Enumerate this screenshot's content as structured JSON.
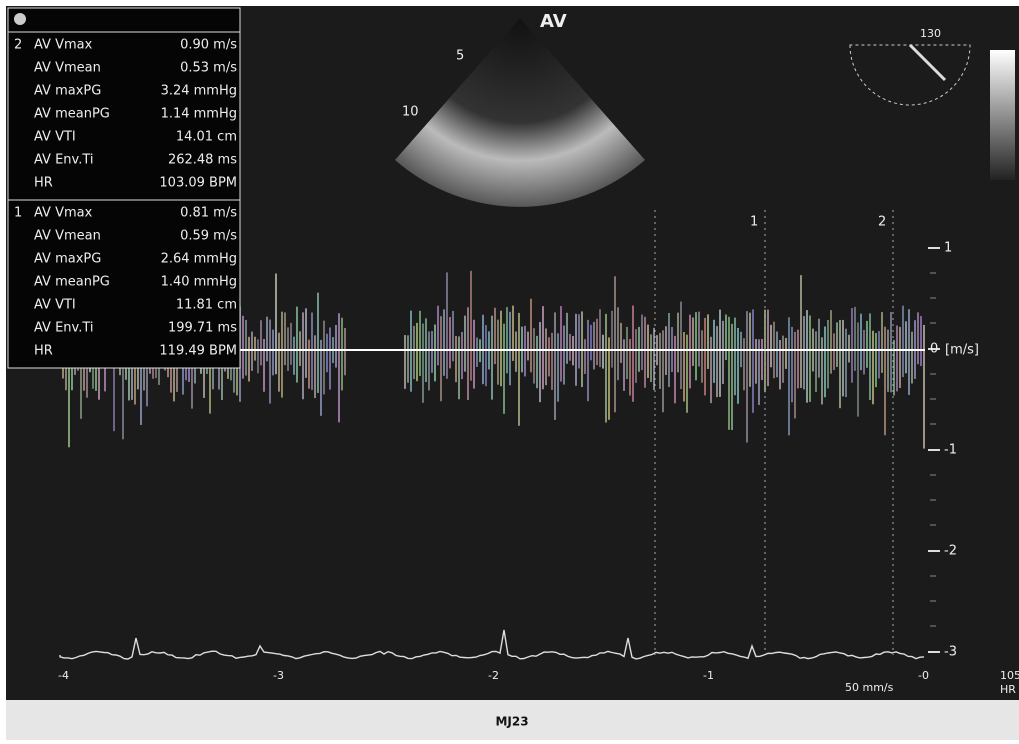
{
  "header": {
    "view_label": "AV",
    "probe_angle": "130"
  },
  "depth_marks": [
    "5",
    "10"
  ],
  "measurements": [
    {
      "marker": "2",
      "rows": [
        {
          "label": "AV Vmax",
          "value": "0.90 m/s"
        },
        {
          "label": "AV Vmean",
          "value": "0.53 m/s"
        },
        {
          "label": "AV maxPG",
          "value": "3.24 mmHg"
        },
        {
          "label": "AV meanPG",
          "value": "1.14 mmHg"
        },
        {
          "label": "AV VTI",
          "value": "14.01 cm"
        },
        {
          "label": "AV Env.Ti",
          "value": "262.48 ms"
        },
        {
          "label": "HR",
          "value": "103.09 BPM"
        }
      ]
    },
    {
      "marker": "1",
      "rows": [
        {
          "label": "AV Vmax",
          "value": "0.81 m/s"
        },
        {
          "label": "AV Vmean",
          "value": "0.59 m/s"
        },
        {
          "label": "AV maxPG",
          "value": "2.64 mmHg"
        },
        {
          "label": "AV meanPG",
          "value": "1.40 mmHg"
        },
        {
          "label": "AV VTI",
          "value": "11.81 cm"
        },
        {
          "label": "AV Env.Ti",
          "value": "199.71 ms"
        },
        {
          "label": "HR",
          "value": "119.49 BPM"
        }
      ]
    }
  ],
  "velocity_scale": {
    "ticks": [
      "1",
      "0",
      "-1",
      "-2",
      "-3"
    ],
    "unit": "[m/s]"
  },
  "cursor_markers": [
    "1",
    "2"
  ],
  "time_marks": [
    "-4",
    "-3",
    "-2",
    "-1",
    "-0"
  ],
  "sweep_speed": "50 mm/s",
  "heart_rate": {
    "value": "105",
    "unit": "HR"
  },
  "footer": "MJ23"
}
